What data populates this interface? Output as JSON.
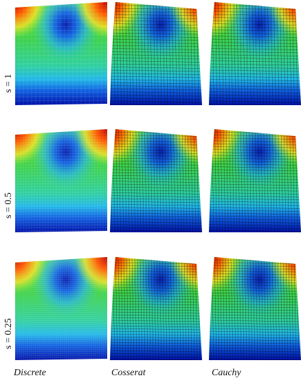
{
  "rows": [
    {
      "label": "s = 1"
    },
    {
      "label": "s = 0.5"
    },
    {
      "label": "s = 0.25"
    }
  ],
  "columns": [
    "Discrete",
    "Cosserat",
    "Cauchy"
  ]
}
